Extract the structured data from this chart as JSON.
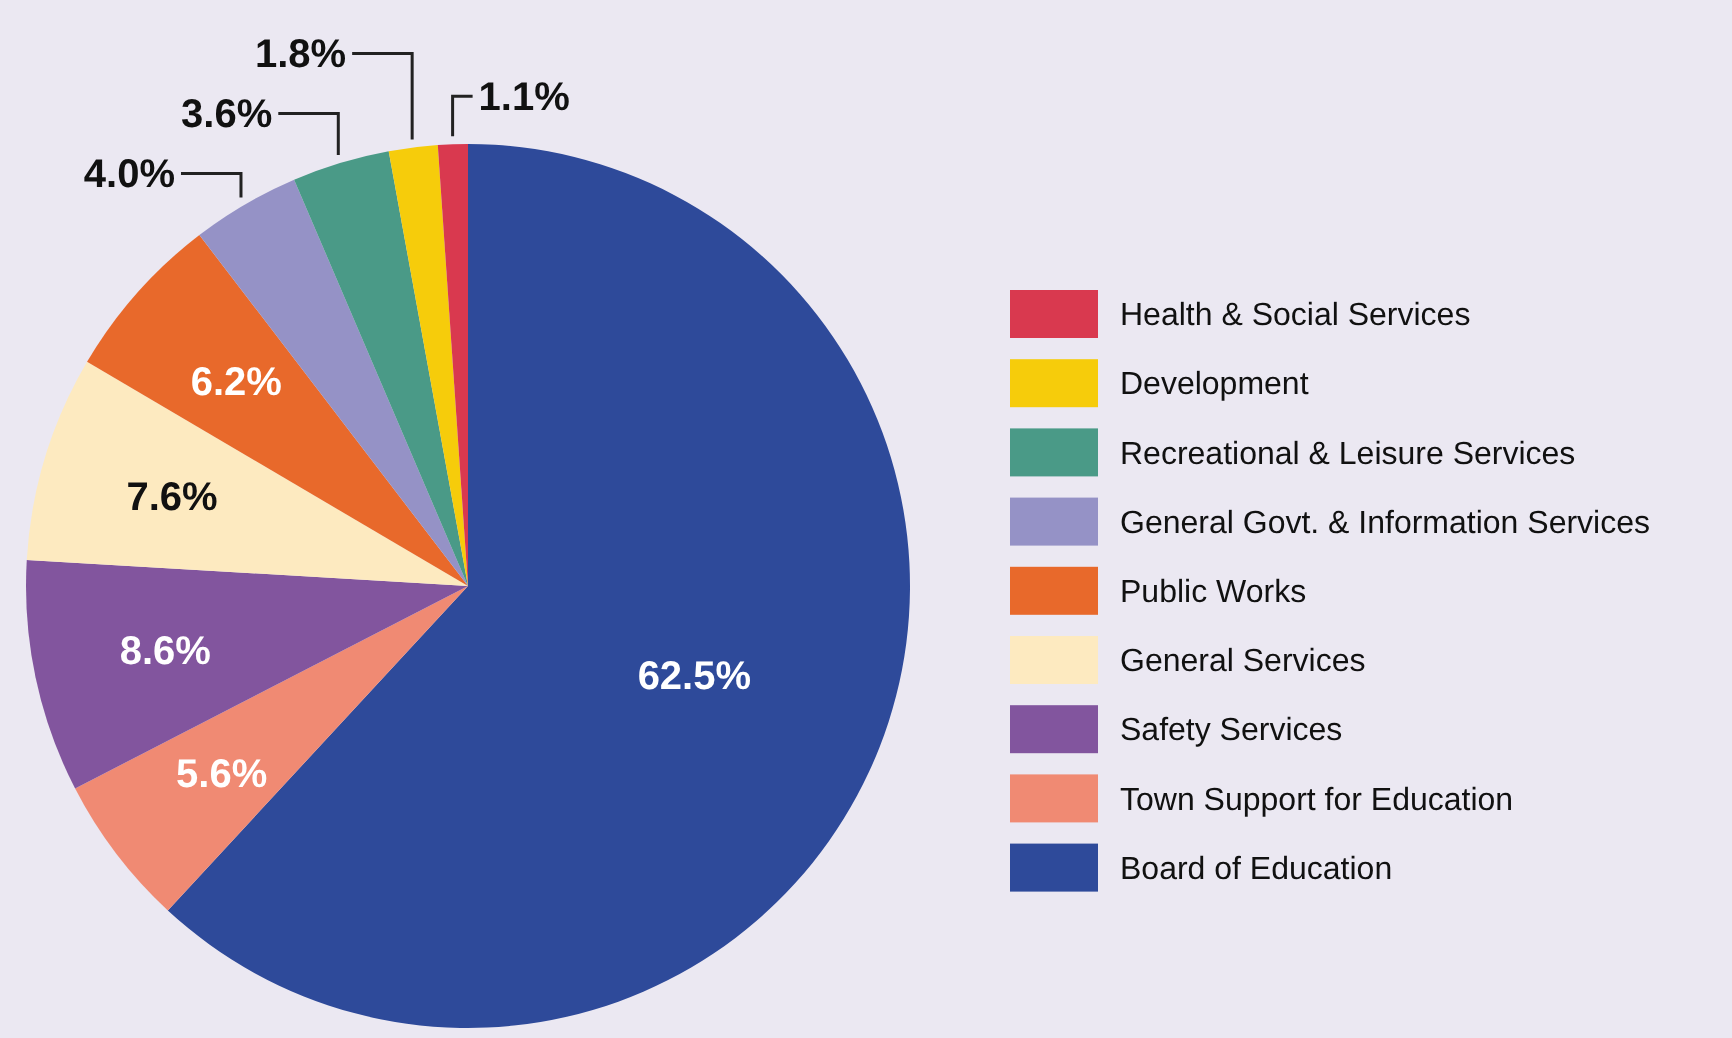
{
  "chart_data": {
    "type": "pie",
    "categories": [
      "Board of Education",
      "Town Support for Education",
      "Safety Services",
      "General Services",
      "Public Works",
      "General Govt. & Information Services",
      "Recreational & Leisure Services",
      "Development",
      "Health & Social Services"
    ],
    "values": [
      62.5,
      5.6,
      8.6,
      7.6,
      6.2,
      4.0,
      3.6,
      1.8,
      1.1
    ],
    "colors": [
      "#2e4a9a",
      "#f08a73",
      "#82559e",
      "#fdeac0",
      "#e8692b",
      "#9592c6",
      "#4a9a87",
      "#f6cc0b",
      "#d9394f"
    ],
    "value_labels": [
      "62.5%",
      "5.6%",
      "8.6%",
      "7.6%",
      "6.2%",
      "4.0%",
      "3.6%",
      "1.8%",
      "1.1%"
    ],
    "legend": "right"
  }
}
